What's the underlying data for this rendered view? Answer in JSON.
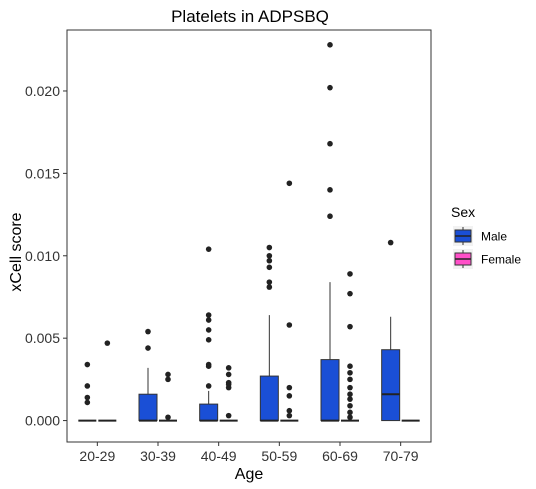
{
  "chart_data": {
    "type": "box",
    "title": "Platelets in ADPSBQ",
    "xlabel": "Age",
    "ylabel": "xCell score",
    "ylim": [
      -0.0013,
      0.0237
    ],
    "yticks": [
      0.0,
      0.005,
      0.01,
      0.015,
      0.02
    ],
    "ytick_labels": [
      "0.000",
      "0.005",
      "0.010",
      "0.015",
      "0.020"
    ],
    "categories": [
      "20-29",
      "30-39",
      "40-49",
      "50-59",
      "60-69",
      "70-79"
    ],
    "grid": false,
    "legend": {
      "title": "Sex",
      "position": "right"
    },
    "series": [
      {
        "name": "Male",
        "color": "#1a4fd6",
        "boxes": [
          {
            "q1": 0,
            "median": 0,
            "q3": 0,
            "whisker_low": 0,
            "whisker_high": 0,
            "outliers": [
              0.0034,
              0.0021,
              0.0014,
              0.0011
            ]
          },
          {
            "q1": 0,
            "median": 0,
            "q3": 0.0016,
            "whisker_low": 0,
            "whisker_high": 0.0032,
            "outliers": [
              0.0054,
              0.0044
            ]
          },
          {
            "q1": 0,
            "median": 0,
            "q3": 0.001,
            "whisker_low": 0,
            "whisker_high": 0.0018,
            "outliers": [
              0.0104,
              0.0064,
              0.0061,
              0.0055,
              0.0049,
              0.0034,
              0.0033,
              0.0021
            ]
          },
          {
            "q1": 0,
            "median": 0,
            "q3": 0.0027,
            "whisker_low": 0,
            "whisker_high": 0.0064,
            "outliers": [
              0.0105,
              0.01,
              0.0097,
              0.0093,
              0.0084,
              0.0081
            ]
          },
          {
            "q1": 0,
            "median": 0,
            "q3": 0.0037,
            "whisker_low": 0,
            "whisker_high": 0.0084,
            "outliers": [
              0.0228,
              0.0202,
              0.0168,
              0.014,
              0.0124
            ]
          },
          {
            "q1": 0,
            "median": 0.0016,
            "q3": 0.0043,
            "whisker_low": 0,
            "whisker_high": 0.0063,
            "outliers": [
              0.0108
            ]
          }
        ]
      },
      {
        "name": "Female",
        "color": "#ff4fc8",
        "boxes": [
          {
            "q1": 0,
            "median": 0,
            "q3": 0,
            "whisker_low": 0,
            "whisker_high": 0,
            "outliers": [
              0.0047
            ]
          },
          {
            "q1": 0,
            "median": 0,
            "q3": 0,
            "whisker_low": 0,
            "whisker_high": 0,
            "outliers": [
              0.0028,
              0.0025,
              0.0002
            ]
          },
          {
            "q1": 0,
            "median": 0,
            "q3": 0,
            "whisker_low": 0,
            "whisker_high": 0,
            "outliers": [
              0.0032,
              0.0028,
              0.0023,
              0.0022,
              0.002,
              0.0003
            ]
          },
          {
            "q1": 0,
            "median": 0,
            "q3": 0,
            "whisker_low": 0,
            "whisker_high": 0,
            "outliers": [
              0.0144,
              0.0058,
              0.002,
              0.0015,
              0.0006,
              0.0003
            ]
          },
          {
            "q1": 0,
            "median": 0,
            "q3": 0,
            "whisker_low": 0,
            "whisker_high": 0,
            "outliers": [
              0.0089,
              0.0077,
              0.0057,
              0.0033,
              0.0029,
              0.0025,
              0.002,
              0.0016,
              0.0013,
              0.0009,
              0.0005,
              0.0002
            ]
          },
          {
            "q1": 0,
            "median": 0,
            "q3": 0,
            "whisker_low": 0,
            "whisker_high": 0,
            "outliers": []
          }
        ]
      }
    ]
  }
}
